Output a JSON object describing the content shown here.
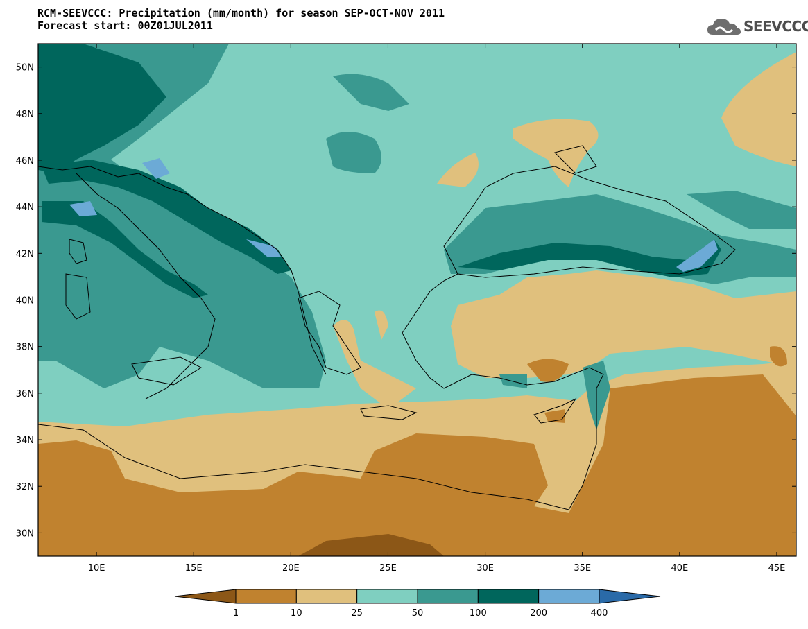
{
  "title_line1": "RCM-SEEVCCC: Precipitation (mm/month) for season SEP-OCT-NOV 2011",
  "title_line2": "Forecast start: 00Z01JUL2011",
  "logo_text": "SEEVCCC",
  "logo_icon": "cloud-icon",
  "map": {
    "projection": "lat-lon",
    "lon_range": [
      7,
      46
    ],
    "lat_range": [
      29,
      51
    ],
    "lat_ticks": [
      {
        "value": 30,
        "label": "30N"
      },
      {
        "value": 32,
        "label": "32N"
      },
      {
        "value": 34,
        "label": "34N"
      },
      {
        "value": 36,
        "label": "36N"
      },
      {
        "value": 38,
        "label": "38N"
      },
      {
        "value": 40,
        "label": "40N"
      },
      {
        "value": 42,
        "label": "42N"
      },
      {
        "value": 44,
        "label": "44N"
      },
      {
        "value": 46,
        "label": "46N"
      },
      {
        "value": 48,
        "label": "48N"
      },
      {
        "value": 50,
        "label": "50N"
      }
    ],
    "lon_ticks": [
      {
        "value": 10,
        "label": "10E"
      },
      {
        "value": 15,
        "label": "15E"
      },
      {
        "value": 20,
        "label": "20E"
      },
      {
        "value": 25,
        "label": "25E"
      },
      {
        "value": 30,
        "label": "30E"
      },
      {
        "value": 35,
        "label": "35E"
      },
      {
        "value": 40,
        "label": "40E"
      },
      {
        "value": 45,
        "label": "45E"
      }
    ]
  },
  "colorbar": {
    "levels": [
      "1",
      "10",
      "25",
      "50",
      "100",
      "200",
      "400"
    ],
    "colors": [
      "#8c5717",
      "#c0822f",
      "#e0c07d",
      "#7fcfc0",
      "#3a9990",
      "#00665c",
      "#6caad6",
      "#2a6aa8"
    ]
  }
}
